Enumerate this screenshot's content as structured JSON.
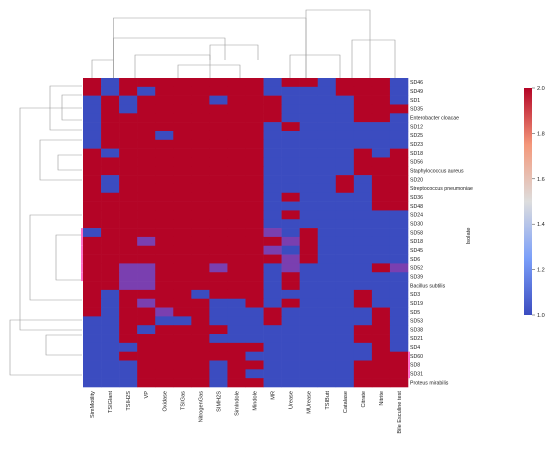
{
  "chart_data": {
    "type": "heatmap",
    "title": "",
    "ylabel": "Isolate",
    "xlabel": "",
    "columns": [
      "SimMotility",
      "TSIGlant",
      "TSIH2S",
      "VP",
      "Oxidase",
      "TSIGas",
      "NitrogenGas",
      "SIMH2S",
      "SimIndole",
      "Mindole",
      "MR",
      "Urease",
      "MUrease",
      "TSIButt",
      "Catalase",
      "Citrate",
      "Nitrite",
      "Bile Esculine test"
    ],
    "rows": [
      "SD46",
      "SD49",
      "SD1",
      "SD35",
      "Enterobacter cloacae",
      "SD12",
      "SD25",
      "SD23",
      "SD18",
      "SD56",
      "Staphylococcus aureus",
      "SD20",
      "Streptococcus pneumoniae",
      "SD36",
      "SD48",
      "SD24",
      "SD30",
      "SD58",
      "SD18",
      "SD45",
      "SD6",
      "SD52",
      "SD39",
      "Bacillus subtilis",
      "SD3",
      "SD19",
      "SD5",
      "SD53",
      "SD38",
      "SD21",
      "SD4",
      "SD60",
      "SD8",
      "SD31",
      "Proteus mirabilis"
    ],
    "values": [
      [
        2,
        1,
        2,
        2,
        2,
        2,
        2,
        2,
        2,
        2,
        1,
        2,
        2,
        1,
        2,
        2,
        2,
        1
      ],
      [
        2,
        1,
        2,
        1,
        2,
        2,
        2,
        2,
        2,
        2,
        1,
        1,
        1,
        1,
        2,
        2,
        2,
        1
      ],
      [
        1,
        2,
        1,
        2,
        2,
        2,
        2,
        1,
        2,
        2,
        2,
        1,
        1,
        1,
        1,
        2,
        2,
        1
      ],
      [
        1,
        2,
        1,
        2,
        2,
        2,
        2,
        2,
        2,
        2,
        2,
        1,
        1,
        1,
        1,
        2,
        2,
        2
      ],
      [
        1,
        2,
        2,
        2,
        2,
        2,
        2,
        2,
        2,
        2,
        2,
        1,
        1,
        1,
        1,
        2,
        2,
        1
      ],
      [
        1,
        2,
        2,
        2,
        2,
        2,
        2,
        2,
        2,
        2,
        1,
        2,
        1,
        1,
        1,
        1,
        1,
        1
      ],
      [
        1,
        2,
        2,
        2,
        1,
        2,
        2,
        2,
        2,
        2,
        1,
        1,
        1,
        1,
        1,
        1,
        1,
        1
      ],
      [
        1,
        2,
        2,
        2,
        2,
        2,
        2,
        2,
        2,
        2,
        1,
        1,
        1,
        1,
        1,
        1,
        1,
        1
      ],
      [
        2,
        1,
        2,
        2,
        2,
        2,
        2,
        2,
        2,
        2,
        1,
        1,
        1,
        1,
        1,
        2,
        1,
        2
      ],
      [
        2,
        2,
        2,
        2,
        2,
        2,
        2,
        2,
        2,
        2,
        1,
        1,
        1,
        1,
        1,
        2,
        2,
        2
      ],
      [
        2,
        2,
        2,
        2,
        2,
        2,
        2,
        2,
        2,
        2,
        1,
        1,
        1,
        1,
        1,
        2,
        2,
        2
      ],
      [
        2,
        1,
        2,
        2,
        2,
        2,
        2,
        2,
        2,
        2,
        1,
        1,
        1,
        1,
        2,
        1,
        2,
        2
      ],
      [
        2,
        1,
        2,
        2,
        2,
        2,
        2,
        2,
        2,
        2,
        1,
        1,
        1,
        1,
        2,
        1,
        2,
        2
      ],
      [
        2,
        2,
        2,
        2,
        2,
        2,
        2,
        2,
        2,
        2,
        1,
        2,
        1,
        1,
        1,
        1,
        2,
        2
      ],
      [
        2,
        2,
        2,
        2,
        2,
        2,
        2,
        2,
        2,
        2,
        1,
        1,
        1,
        1,
        1,
        1,
        2,
        2
      ],
      [
        2,
        2,
        2,
        2,
        2,
        2,
        2,
        2,
        2,
        2,
        1,
        2,
        1,
        1,
        1,
        1,
        1,
        1
      ],
      [
        2,
        2,
        2,
        2,
        2,
        2,
        2,
        2,
        2,
        2,
        1,
        1,
        1,
        1,
        1,
        1,
        1,
        1
      ],
      [
        1,
        2,
        2,
        2,
        2,
        2,
        2,
        2,
        2,
        2,
        1.5,
        1,
        2,
        1,
        1,
        1,
        1,
        1
      ],
      [
        2,
        2,
        2,
        1.6,
        2,
        2,
        2,
        2,
        2,
        2,
        2,
        1.5,
        2,
        1,
        1,
        1,
        1,
        1
      ],
      [
        2,
        2,
        2,
        2,
        2,
        2,
        2,
        2,
        2,
        2,
        1.5,
        1,
        2,
        1,
        1,
        1,
        1,
        1
      ],
      [
        2,
        2,
        2,
        2,
        2,
        2,
        2,
        2,
        2,
        2,
        2,
        1.5,
        2,
        1,
        1,
        1,
        1,
        1
      ],
      [
        2,
        2,
        1.5,
        1.5,
        2,
        2,
        2,
        1.5,
        2,
        2,
        1,
        1.5,
        1,
        1,
        1,
        1,
        2,
        1.5
      ],
      [
        2,
        2,
        1.5,
        1.5,
        2,
        2,
        2,
        2,
        2,
        2,
        1,
        2,
        1,
        1,
        1,
        1,
        1,
        1
      ],
      [
        2,
        2,
        1.5,
        1.5,
        2,
        2,
        2,
        2,
        2,
        2,
        1,
        2,
        1,
        1,
        1,
        1,
        1,
        1
      ],
      [
        2,
        1,
        2,
        2,
        2,
        2,
        1,
        2,
        2,
        2,
        1,
        1,
        1,
        1,
        1,
        2,
        1,
        1
      ],
      [
        2,
        1,
        2,
        1.5,
        2,
        2,
        2,
        1,
        1,
        2,
        1,
        2,
        1,
        1,
        1,
        2,
        1,
        1
      ],
      [
        2,
        1,
        2,
        2,
        1.5,
        2,
        2,
        1,
        1,
        1,
        2,
        1,
        1,
        1,
        1,
        1,
        2,
        1
      ],
      [
        1,
        1,
        2,
        2,
        1,
        1,
        2,
        1,
        1,
        1,
        2,
        1,
        1,
        1,
        1,
        1,
        2,
        1
      ],
      [
        1,
        1,
        2,
        1,
        2,
        2,
        2,
        2,
        1,
        1,
        1,
        1,
        1,
        1,
        1,
        2,
        2,
        1
      ],
      [
        1,
        1,
        2,
        2,
        2,
        2,
        2,
        1,
        1,
        1,
        1,
        1,
        1,
        1,
        1,
        2,
        2,
        1
      ],
      [
        1,
        1,
        1,
        2,
        2,
        2,
        2,
        2,
        2,
        2,
        1,
        1,
        1,
        1,
        1,
        1,
        2,
        1
      ],
      [
        1,
        1,
        2,
        2,
        2,
        2,
        2,
        2,
        2,
        1,
        1,
        1,
        1,
        1,
        1,
        1,
        2,
        2
      ],
      [
        1,
        1,
        1,
        2,
        2,
        2,
        2,
        1,
        2,
        2,
        1,
        1,
        1,
        1,
        1,
        2,
        2,
        2
      ],
      [
        1,
        1,
        1,
        2,
        2,
        2,
        2,
        1,
        2,
        1,
        1,
        1,
        1,
        1,
        1,
        2,
        2,
        2
      ],
      [
        1,
        1,
        1,
        2,
        2,
        2,
        2,
        1,
        2,
        2,
        1,
        1,
        1,
        1,
        1,
        2,
        2,
        2
      ]
    ],
    "colorbar": {
      "vmin": 1.0,
      "vmax": 2.0,
      "ticks": [
        "1.0",
        "1.2",
        "1.4",
        "1.6",
        "1.8",
        "2.0"
      ],
      "colormap": "coolwarm"
    },
    "dendrograms": {
      "rows": true,
      "columns": true
    },
    "highlight_color": "#ff6ec7"
  }
}
